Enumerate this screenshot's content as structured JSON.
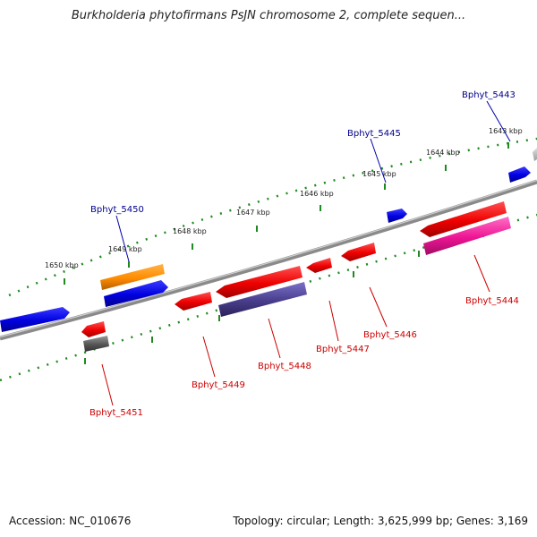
{
  "title": "Burkholderia phytofirmans PsJN chromosome 2, complete sequen...",
  "footer": {
    "accession": "Accession: NC_010676",
    "summary": "Topology: circular; Length: 3,625,999 bp; Genes: 3,169"
  },
  "ticks": [
    "1650 kbp",
    "1649 kbp",
    "1648 kbp",
    "1647 kbp",
    "1646 kbp",
    "1645 kbp",
    "1644 kbp",
    "1643 kbp"
  ],
  "colors": {
    "backbone": "#8a8a8a",
    "tick": "#1f8a1f",
    "forward_label": "#00008b",
    "reverse_label": "#cc0000",
    "blue": "#0000ee",
    "red": "#ee0000",
    "orange": "#ff8c00",
    "purple": "#483d8b",
    "pink": "#ee1493",
    "gray": "#555555"
  },
  "labels": {
    "Bphyt_5443": "Bphyt_5443",
    "Bphyt_5445": "Bphyt_5445",
    "Bphyt_5450": "Bphyt_5450",
    "Bphyt_5444": "Bphyt_5444",
    "Bphyt_5446": "Bphyt_5446",
    "Bphyt_5447": "Bphyt_5447",
    "Bphyt_5448": "Bphyt_5448",
    "Bphyt_5449": "Bphyt_5449",
    "Bphyt_5451": "Bphyt_5451"
  }
}
